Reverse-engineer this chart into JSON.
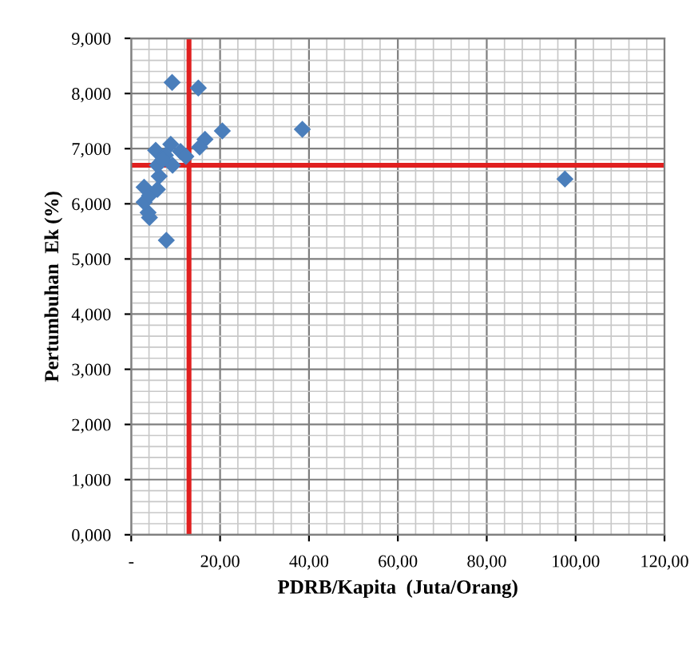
{
  "chart_data": {
    "type": "scatter",
    "xlabel": "PDRB/Kapita  (Juta/Orang)",
    "ylabel": "Pertumbuhan  Ek (%)",
    "series": [
      {
        "color": "#4a7ebb",
        "x": [
          9.2,
          15.1,
          20.5,
          16.6,
          15.4,
          38.5,
          97.6,
          7.9,
          4.1,
          3.8,
          2.9,
          2.9,
          4.1,
          5.9,
          5.5,
          8.9,
          7.7,
          6.3,
          9.3,
          5.9,
          7.1,
          11.1,
          12.3
        ],
        "values": [
          8.2,
          8.1,
          7.32,
          7.17,
          7.03,
          7.35,
          6.45,
          5.34,
          5.75,
          5.84,
          6.03,
          6.3,
          6.15,
          6.26,
          6.97,
          7.08,
          6.88,
          6.5,
          6.7,
          6.7,
          6.8,
          6.95,
          6.86
        ]
      }
    ],
    "marker": "diamond",
    "grid": true,
    "legend": false,
    "xlim": [
      0,
      120
    ],
    "ylim": [
      0,
      9
    ],
    "xticks": [
      {
        "value": 0,
        "label": "-"
      },
      {
        "value": 20,
        "label": "20,00"
      },
      {
        "value": 40,
        "label": "40,00"
      },
      {
        "value": 60,
        "label": "60,00"
      },
      {
        "value": 80,
        "label": "80,00"
      },
      {
        "value": 100,
        "label": "100,00"
      },
      {
        "value": 120,
        "label": "120,00"
      }
    ],
    "yticks": [
      {
        "value": 0,
        "label": "0,000"
      },
      {
        "value": 1,
        "label": "1,000"
      },
      {
        "value": 2,
        "label": "2,000"
      },
      {
        "value": 3,
        "label": "3,000"
      },
      {
        "value": 4,
        "label": "4,000"
      },
      {
        "value": 5,
        "label": "5,000"
      },
      {
        "value": 6,
        "label": "6,000"
      },
      {
        "value": 7,
        "label": "7,000"
      },
      {
        "value": 8,
        "label": "8,000"
      },
      {
        "value": 9,
        "label": "9,000"
      }
    ],
    "ref_lines": [
      {
        "axis": "x",
        "value": 13,
        "color": "#e02020"
      },
      {
        "axis": "y",
        "value": 6.7,
        "color": "#e02020"
      }
    ]
  }
}
